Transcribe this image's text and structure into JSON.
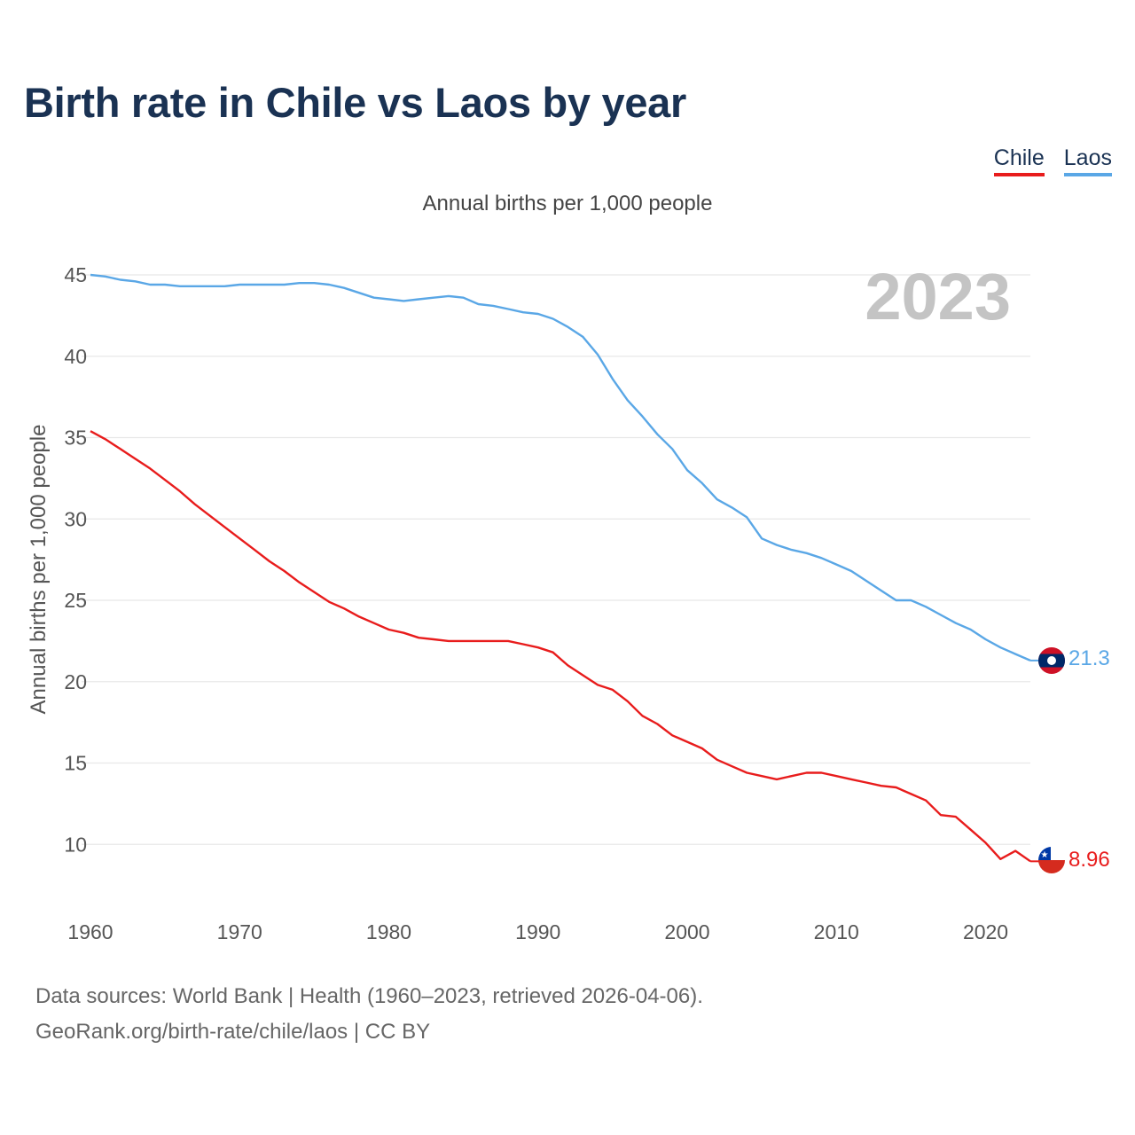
{
  "title": "Birth rate in Chile vs Laos by year",
  "subtitle": "Annual births per 1,000 people",
  "legend": [
    {
      "label": "Chile",
      "color": "#e81c1c"
    },
    {
      "label": "Laos",
      "color": "#5aa7e6"
    }
  ],
  "year_overlay": "2023",
  "footer": {
    "line1": "Data sources: World Bank | Health (1960–2023, retrieved 2026-04-06).",
    "line2": "GeoRank.org/birth-rate/chile/laos | CC BY"
  },
  "end_labels": {
    "laos": "21.3",
    "chile": "8.96"
  },
  "chart_data": {
    "type": "line",
    "title": "Birth rate in Chile vs Laos by year",
    "xlabel": "",
    "ylabel": "Annual births per 1,000 people",
    "xlim": [
      1960,
      2023
    ],
    "ylim": [
      6.5,
      45
    ],
    "yticks": [
      10,
      15,
      20,
      25,
      30,
      35,
      40,
      45
    ],
    "xticks": [
      1960,
      1970,
      1980,
      1990,
      2000,
      2010,
      2020
    ],
    "grid": true,
    "x": [
      1960,
      1961,
      1962,
      1963,
      1964,
      1965,
      1966,
      1967,
      1968,
      1969,
      1970,
      1971,
      1972,
      1973,
      1974,
      1975,
      1976,
      1977,
      1978,
      1979,
      1980,
      1981,
      1982,
      1983,
      1984,
      1985,
      1986,
      1987,
      1988,
      1989,
      1990,
      1991,
      1992,
      1993,
      1994,
      1995,
      1996,
      1997,
      1998,
      1999,
      2000,
      2001,
      2002,
      2003,
      2004,
      2005,
      2006,
      2007,
      2008,
      2009,
      2010,
      2011,
      2012,
      2013,
      2014,
      2015,
      2016,
      2017,
      2018,
      2019,
      2020,
      2021,
      2022,
      2023
    ],
    "series": [
      {
        "name": "Chile",
        "color": "#e81c1c",
        "values": [
          35.4,
          34.9,
          34.3,
          33.7,
          33.1,
          32.4,
          31.7,
          30.9,
          30.2,
          29.5,
          28.8,
          28.1,
          27.4,
          26.8,
          26.1,
          25.5,
          24.9,
          24.5,
          24.0,
          23.6,
          23.2,
          23.0,
          22.7,
          22.6,
          22.5,
          22.5,
          22.5,
          22.5,
          22.5,
          22.3,
          22.1,
          21.8,
          21.0,
          20.4,
          19.8,
          19.5,
          18.8,
          17.9,
          17.4,
          16.7,
          16.3,
          15.9,
          15.2,
          14.8,
          14.4,
          14.2,
          14.0,
          14.2,
          14.4,
          14.4,
          14.2,
          14.0,
          13.8,
          13.6,
          13.5,
          13.1,
          12.7,
          11.8,
          11.7,
          10.9,
          10.1,
          9.1,
          9.6,
          8.96
        ]
      },
      {
        "name": "Laos",
        "color": "#5aa7e6",
        "values": [
          45.0,
          44.9,
          44.7,
          44.6,
          44.4,
          44.4,
          44.3,
          44.3,
          44.3,
          44.3,
          44.4,
          44.4,
          44.4,
          44.4,
          44.5,
          44.5,
          44.4,
          44.2,
          43.9,
          43.6,
          43.5,
          43.4,
          43.5,
          43.6,
          43.7,
          43.6,
          43.2,
          43.1,
          42.9,
          42.7,
          42.6,
          42.3,
          41.8,
          41.2,
          40.1,
          38.6,
          37.3,
          36.3,
          35.2,
          34.3,
          33.0,
          32.2,
          31.2,
          30.7,
          30.1,
          28.8,
          28.4,
          28.1,
          27.9,
          27.6,
          27.2,
          26.8,
          26.2,
          25.6,
          25.0,
          25.0,
          24.6,
          24.1,
          23.6,
          23.2,
          22.6,
          22.1,
          21.7,
          21.3
        ]
      }
    ]
  }
}
